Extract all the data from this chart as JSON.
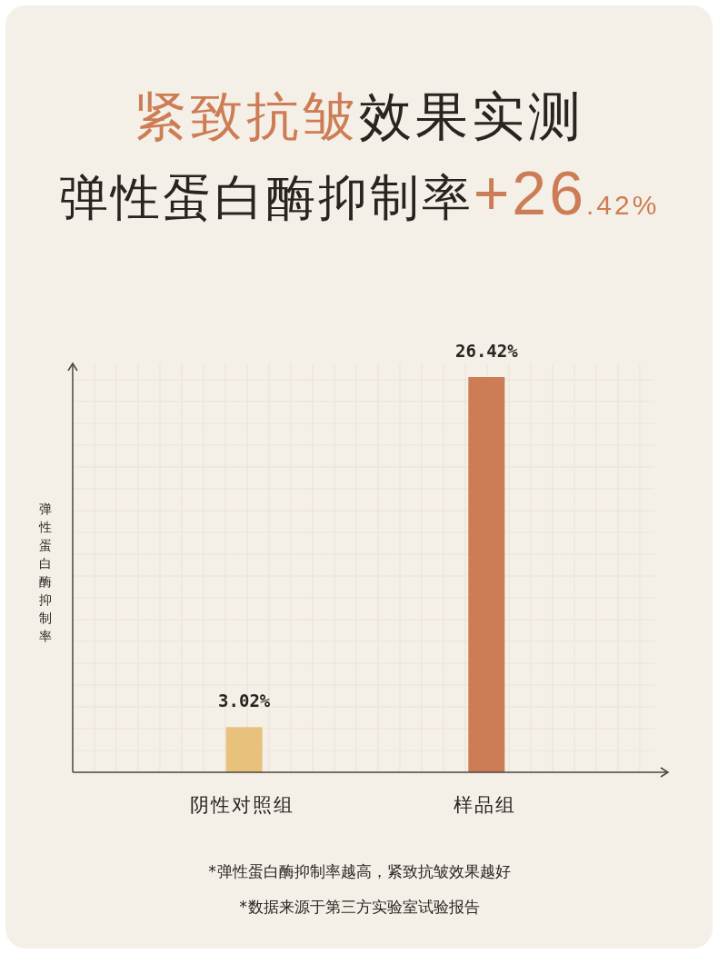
{
  "chart_data": {
    "type": "bar",
    "title": "紧致抗皱效果实测",
    "subtitle": "弹性蛋白酶抑制率+26.42%",
    "ylabel": "弹性蛋白酶抑制率",
    "categories": [
      "阴性对照组",
      "样品组"
    ],
    "values": [
      3.02,
      26.42
    ],
    "colors": [
      "#e8c27c",
      "#cd7d55"
    ],
    "data_labels": true,
    "value_labels": [
      "3.02%",
      "26.42%"
    ],
    "grid": true,
    "annotations": [
      "*弹性蛋白酶抑制率越高，紧致抗皱效果越好",
      "*数据来源于第三方实验室试验报告"
    ]
  }
}
